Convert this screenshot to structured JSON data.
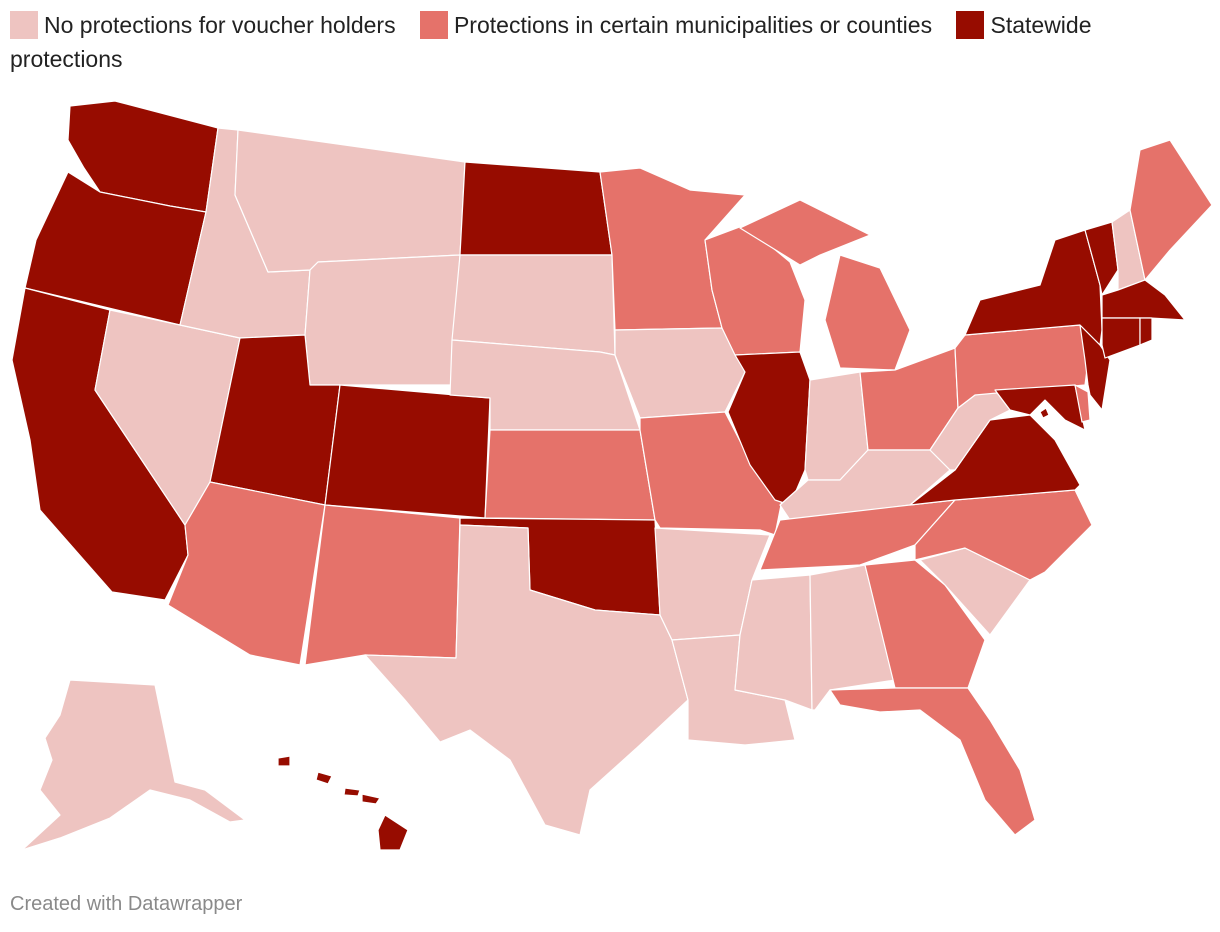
{
  "legend": {
    "items": [
      {
        "label": "No protections for voucher holders",
        "color": "#eec4c1"
      },
      {
        "label": "Protections in certain municipalities or counties",
        "color": "#e5726a"
      },
      {
        "label": "Statewide protections",
        "color": "#970c00"
      }
    ]
  },
  "categories": {
    "none": "#eec4c1",
    "local": "#e5726a",
    "statewide": "#970c00"
  },
  "states": {
    "WA": "statewide",
    "OR": "statewide",
    "CA": "statewide",
    "NV": "none",
    "ID": "none",
    "MT": "none",
    "WY": "none",
    "UT": "statewide",
    "AZ": "local",
    "CO": "statewide",
    "NM": "local",
    "ND": "statewide",
    "SD": "none",
    "NE": "none",
    "KS": "local",
    "OK": "statewide",
    "TX": "none",
    "MN": "local",
    "IA": "none",
    "MO": "local",
    "AR": "none",
    "LA": "none",
    "WI": "local",
    "IL": "statewide",
    "MI": "local",
    "IN": "none",
    "OH": "local",
    "KY": "none",
    "TN": "local",
    "MS": "none",
    "AL": "none",
    "GA": "local",
    "FL": "local",
    "SC": "none",
    "NC": "local",
    "VA": "statewide",
    "WV": "none",
    "PA": "local",
    "NY": "statewide",
    "VT": "statewide",
    "NH": "none",
    "ME": "local",
    "MA": "statewide",
    "CT": "statewide",
    "RI": "statewide",
    "NJ": "statewide",
    "DE": "local",
    "MD": "statewide",
    "DC": "statewide",
    "AK": "none",
    "HI": "statewide"
  },
  "credit": "Created with Datawrapper"
}
